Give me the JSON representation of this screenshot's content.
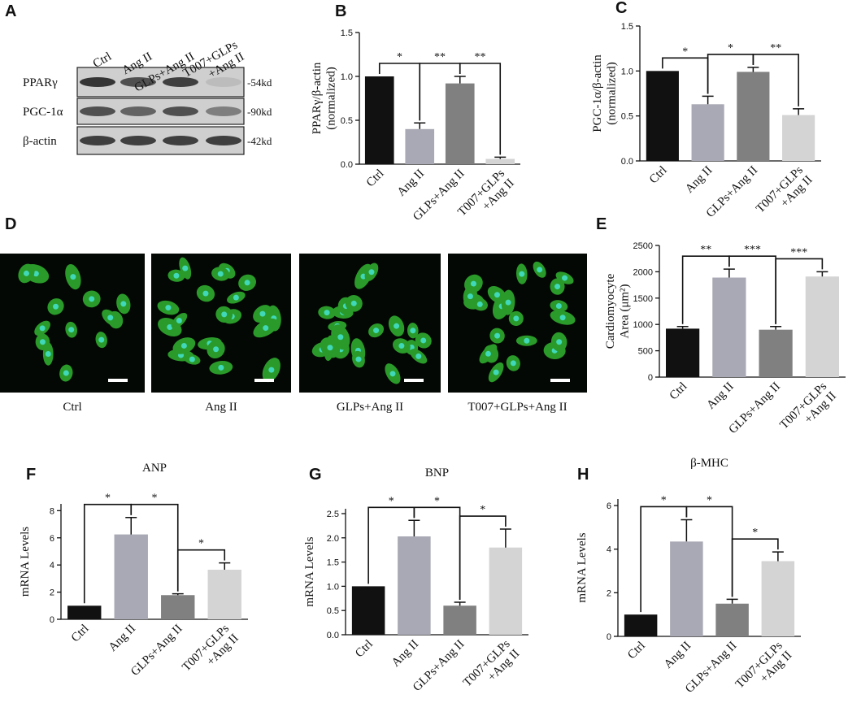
{
  "blot": {
    "panel": "A",
    "lanes": [
      "Ctrl",
      "Ang II",
      "GLPs+Ang II",
      "T007+GLPs\n+Ang II"
    ],
    "rows": [
      {
        "name": "PPARγ",
        "size": "-54kd"
      },
      {
        "name": "PGC-1α",
        "size": "-90kd"
      },
      {
        "name": "β-actin",
        "size": "-42kd"
      }
    ]
  },
  "images": {
    "panel": "D",
    "captions": [
      "Ctrl",
      "Ang II",
      "GLPs+Ang II",
      "T007+GLPs+Ang II"
    ]
  },
  "chart_data": [
    {
      "type": "bar",
      "panel": "B",
      "ylabel": [
        "PPARγ/β-actin",
        "(normalized)"
      ],
      "categories": [
        "Ctrl",
        "Ang II",
        "GLPs+Ang II",
        "T007+GLPs\n+Ang II"
      ],
      "values": [
        1.0,
        0.4,
        0.92,
        0.06
      ],
      "errors": [
        null,
        0.07,
        0.08,
        0.02
      ],
      "colors": [
        "#111111",
        "#a9a9b5",
        "#808080",
        "#d4d4d4"
      ],
      "ylim": [
        0,
        1.5
      ],
      "yticks": [
        {
          "value": 0,
          "label": "0.0"
        },
        {
          "value": 0.5,
          "label": "0.5"
        },
        {
          "value": 1,
          "label": "1.0"
        },
        {
          "value": 1.5,
          "label": "1.5"
        }
      ],
      "significance": [
        "*",
        "**",
        "**"
      ]
    },
    {
      "type": "bar",
      "panel": "C",
      "ylabel": [
        "PGC-1α/β-actin",
        "(normalized)"
      ],
      "categories": [
        "Ctrl",
        "Ang II",
        "GLPs+Ang II",
        "T007+GLPs\n+Ang II"
      ],
      "values": [
        1.0,
        0.63,
        0.99,
        0.51
      ],
      "errors": [
        null,
        0.09,
        0.05,
        0.07
      ],
      "colors": [
        "#111111",
        "#a9a9b5",
        "#808080",
        "#d4d4d4"
      ],
      "ylim": [
        0,
        1.5
      ],
      "yticks": [
        {
          "value": 0,
          "label": "0.0"
        },
        {
          "value": 0.5,
          "label": "0.5"
        },
        {
          "value": 1,
          "label": "1.0"
        },
        {
          "value": 1.5,
          "label": "1.5"
        }
      ],
      "significance": [
        "*",
        "*",
        "**"
      ]
    },
    {
      "type": "bar",
      "panel": "E",
      "ylabel": [
        "Cardiomyocyte",
        "Area (μm²)"
      ],
      "categories": [
        "Ctrl",
        "Ang II",
        "GLPs+Ang II",
        "T007+GLPs\n+Ang II"
      ],
      "values": [
        920,
        1890,
        900,
        1910
      ],
      "errors": [
        40,
        160,
        60,
        90
      ],
      "colors": [
        "#111111",
        "#a9a9b5",
        "#808080",
        "#d4d4d4"
      ],
      "ylim": [
        0,
        2500
      ],
      "yticks": [
        0,
        500,
        1000,
        1500,
        2000,
        2500
      ],
      "significance": [
        "**",
        "***",
        "***"
      ]
    },
    {
      "type": "bar",
      "panel": "F",
      "title": "ANP",
      "ylabel": [
        "mRNA Levels"
      ],
      "categories": [
        "Ctrl",
        "Ang II",
        "GLPs+Ang II",
        "T007+GLPs\n+Ang II"
      ],
      "values": [
        1.0,
        6.25,
        1.78,
        3.65
      ],
      "errors": [
        null,
        1.25,
        0.1,
        0.5
      ],
      "colors": [
        "#111111",
        "#a9a9b5",
        "#808080",
        "#d4d4d4"
      ],
      "ylim": [
        0,
        8.5
      ],
      "yticks": [
        0,
        2,
        4,
        6,
        8
      ],
      "significance": [
        "*",
        "*",
        "*"
      ]
    },
    {
      "type": "bar",
      "panel": "G",
      "title": "BNP",
      "ylabel": [
        "mRNA Levels"
      ],
      "categories": [
        "Ctrl",
        "Ang II",
        "GLPs+Ang II",
        "T007+GLPs\n+Ang II"
      ],
      "values": [
        1.0,
        2.03,
        0.6,
        1.8
      ],
      "errors": [
        null,
        0.33,
        0.07,
        0.38
      ],
      "colors": [
        "#111111",
        "#a9a9b5",
        "#808080",
        "#d4d4d4"
      ],
      "ylim": [
        0,
        2.6
      ],
      "yticks": [
        {
          "value": 0,
          "label": "0.0"
        },
        {
          "value": 0.5,
          "label": "0.5"
        },
        {
          "value": 1,
          "label": "1.0"
        },
        {
          "value": 1.5,
          "label": "1.5"
        },
        {
          "value": 2,
          "label": "2.0"
        },
        {
          "value": 2.5,
          "label": "2.5"
        }
      ],
      "significance": [
        "*",
        "*",
        "*"
      ]
    },
    {
      "type": "bar",
      "panel": "H",
      "title": "β-MHC",
      "ylabel": [
        "mRNA Levels"
      ],
      "categories": [
        "Ctrl",
        "Ang II",
        "GLPs+Ang II",
        "T007+GLPs\n+Ang II"
      ],
      "values": [
        1.0,
        4.35,
        1.5,
        3.45
      ],
      "errors": [
        null,
        1.0,
        0.2,
        0.42
      ],
      "colors": [
        "#111111",
        "#a9a9b5",
        "#808080",
        "#d4d4d4"
      ],
      "ylim": [
        0,
        6.3
      ],
      "yticks": [
        0,
        2,
        4,
        6
      ],
      "significance": [
        "*",
        "*",
        "*"
      ]
    }
  ]
}
